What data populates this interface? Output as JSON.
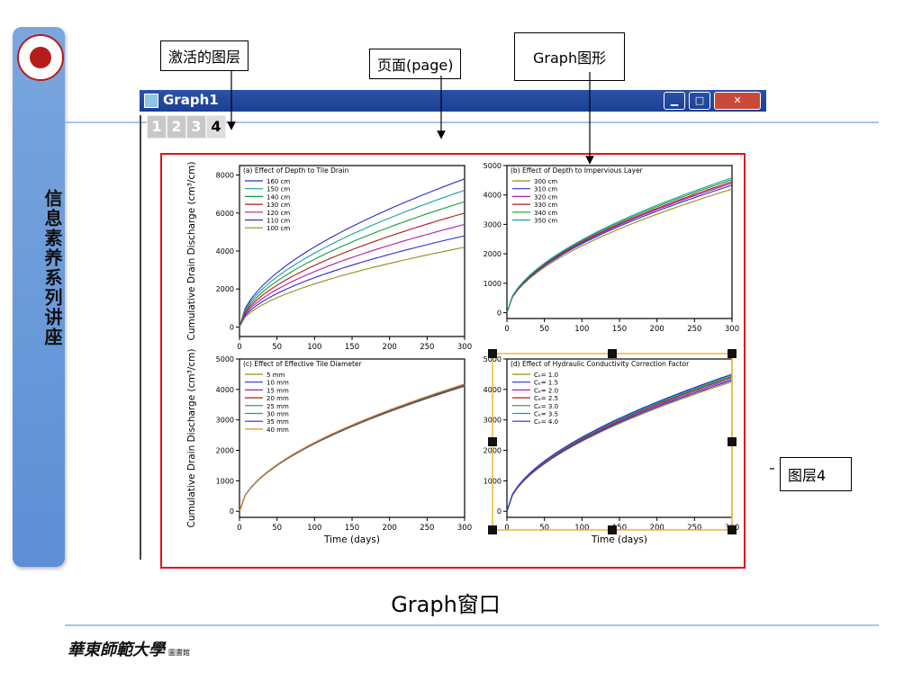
{
  "sidebar_title": "信息素养系列讲座",
  "footer": {
    "university": "華東師範大學",
    "library": "圖書館"
  },
  "callouts": {
    "active_layer": "激活的图层",
    "page": "页面(page)",
    "graph": "Graph图形",
    "layer4": "图层4"
  },
  "window": {
    "title": "Graph1",
    "tabs": [
      "1",
      "2",
      "3",
      "4"
    ],
    "active_tab": "4"
  },
  "bottom_title": "Graph窗口",
  "colors": {
    "frame_red": "#e0141a",
    "sidebar_blue": "#5d8fd6",
    "titlebar_blue": "#1c3f92",
    "layer_select": "#f2b632"
  },
  "chart_data": [
    {
      "type": "line",
      "title": "(a) Effect of Depth to Tile Drain",
      "ylabel": "Cumulative Drain Discharge (cm³/cm)",
      "xlabel": "",
      "xlim": [
        0,
        300
      ],
      "ylim": [
        -500,
        8500
      ],
      "xticks": [
        "0",
        "50",
        "100",
        "150",
        "200",
        "250",
        "300"
      ],
      "yticks": [
        "0",
        "2000",
        "4000",
        "6000",
        "8000"
      ],
      "series": [
        {
          "name": "160 cm",
          "color": "#2b2bd1",
          "end": 7800
        },
        {
          "name": "150 cm",
          "color": "#18a0a0",
          "end": 7200
        },
        {
          "name": "140 cm",
          "color": "#1a9a3a",
          "end": 6600
        },
        {
          "name": "130 cm",
          "color": "#b01a1a",
          "end": 6000
        },
        {
          "name": "120 cm",
          "color": "#b01ab0",
          "end": 5400
        },
        {
          "name": "110 cm",
          "color": "#2b2bd1",
          "end": 4800
        },
        {
          "name": "100 cm",
          "color": "#9a8a1a",
          "end": 4200
        }
      ]
    },
    {
      "type": "line",
      "title": "(b) Effect of Depth to Impervious Layer",
      "ylabel": "",
      "xlabel": "",
      "xlim": [
        0,
        300
      ],
      "ylim": [
        -200,
        5000
      ],
      "xticks": [
        "0",
        "50",
        "100",
        "150",
        "200",
        "250",
        "300"
      ],
      "yticks": [
        "0",
        "1000",
        "2000",
        "3000",
        "4000",
        "5000"
      ],
      "series": [
        {
          "name": "300 cm",
          "color": "#9a8a1a",
          "end": 4200
        },
        {
          "name": "310 cm",
          "color": "#2b2bd1",
          "end": 4330
        },
        {
          "name": "320 cm",
          "color": "#b01ab0",
          "end": 4400
        },
        {
          "name": "330 cm",
          "color": "#b01a1a",
          "end": 4450
        },
        {
          "name": "340 cm",
          "color": "#1a9a3a",
          "end": 4520
        },
        {
          "name": "350 cm",
          "color": "#18a0a0",
          "end": 4580
        }
      ]
    },
    {
      "type": "line",
      "title": "(c) Effect of Effective Tile Diameter",
      "ylabel": "Cumulative Drain Discharge (cm³/cm)",
      "xlabel": "Time (days)",
      "xlim": [
        0,
        300
      ],
      "ylim": [
        -200,
        5000
      ],
      "xticks": [
        "0",
        "50",
        "100",
        "150",
        "200",
        "250",
        "300"
      ],
      "yticks": [
        "0",
        "1000",
        "2000",
        "3000",
        "4000",
        "5000"
      ],
      "series": [
        {
          "name": "5 mm",
          "color": "#9a8a1a",
          "end": 4100
        },
        {
          "name": "10 mm",
          "color": "#2b2bd1",
          "end": 4120
        },
        {
          "name": "15 mm",
          "color": "#b01ab0",
          "end": 4130
        },
        {
          "name": "20 mm",
          "color": "#b01a1a",
          "end": 4140
        },
        {
          "name": "25 mm",
          "color": "#1a9a3a",
          "end": 4150
        },
        {
          "name": "30 mm",
          "color": "#18a0a0",
          "end": 4160
        },
        {
          "name": "35 mm",
          "color": "#2b2bd1",
          "end": 4170
        },
        {
          "name": "40 mm",
          "color": "#e08a1a",
          "end": 4180
        }
      ]
    },
    {
      "type": "line",
      "title": "(d) Effect of Hydraulic Conductivity Correction Factor",
      "ylabel": "",
      "xlabel": "Time (days)",
      "xlim": [
        0,
        300
      ],
      "ylim": [
        -200,
        5000
      ],
      "xticks": [
        "0",
        "50",
        "100",
        "150",
        "200",
        "250",
        "300"
      ],
      "yticks": [
        "0",
        "1000",
        "2000",
        "3000",
        "4000",
        "5000"
      ],
      "series": [
        {
          "name": "Cₑ= 1.0",
          "color": "#9a8a1a",
          "end": 4250
        },
        {
          "name": "Cₑ= 1.5",
          "color": "#2b2bd1",
          "end": 4300
        },
        {
          "name": "Cₑ= 2.0",
          "color": "#b01ab0",
          "end": 4350
        },
        {
          "name": "Cₑ= 2.5",
          "color": "#b01a1a",
          "end": 4400
        },
        {
          "name": "Cₑ= 3.0",
          "color": "#1a9a3a",
          "end": 4430
        },
        {
          "name": "Cₑ= 3.5",
          "color": "#18a0a0",
          "end": 4470
        },
        {
          "name": "Cₑ= 4.0",
          "color": "#2b2bd1",
          "end": 4500
        }
      ]
    }
  ]
}
